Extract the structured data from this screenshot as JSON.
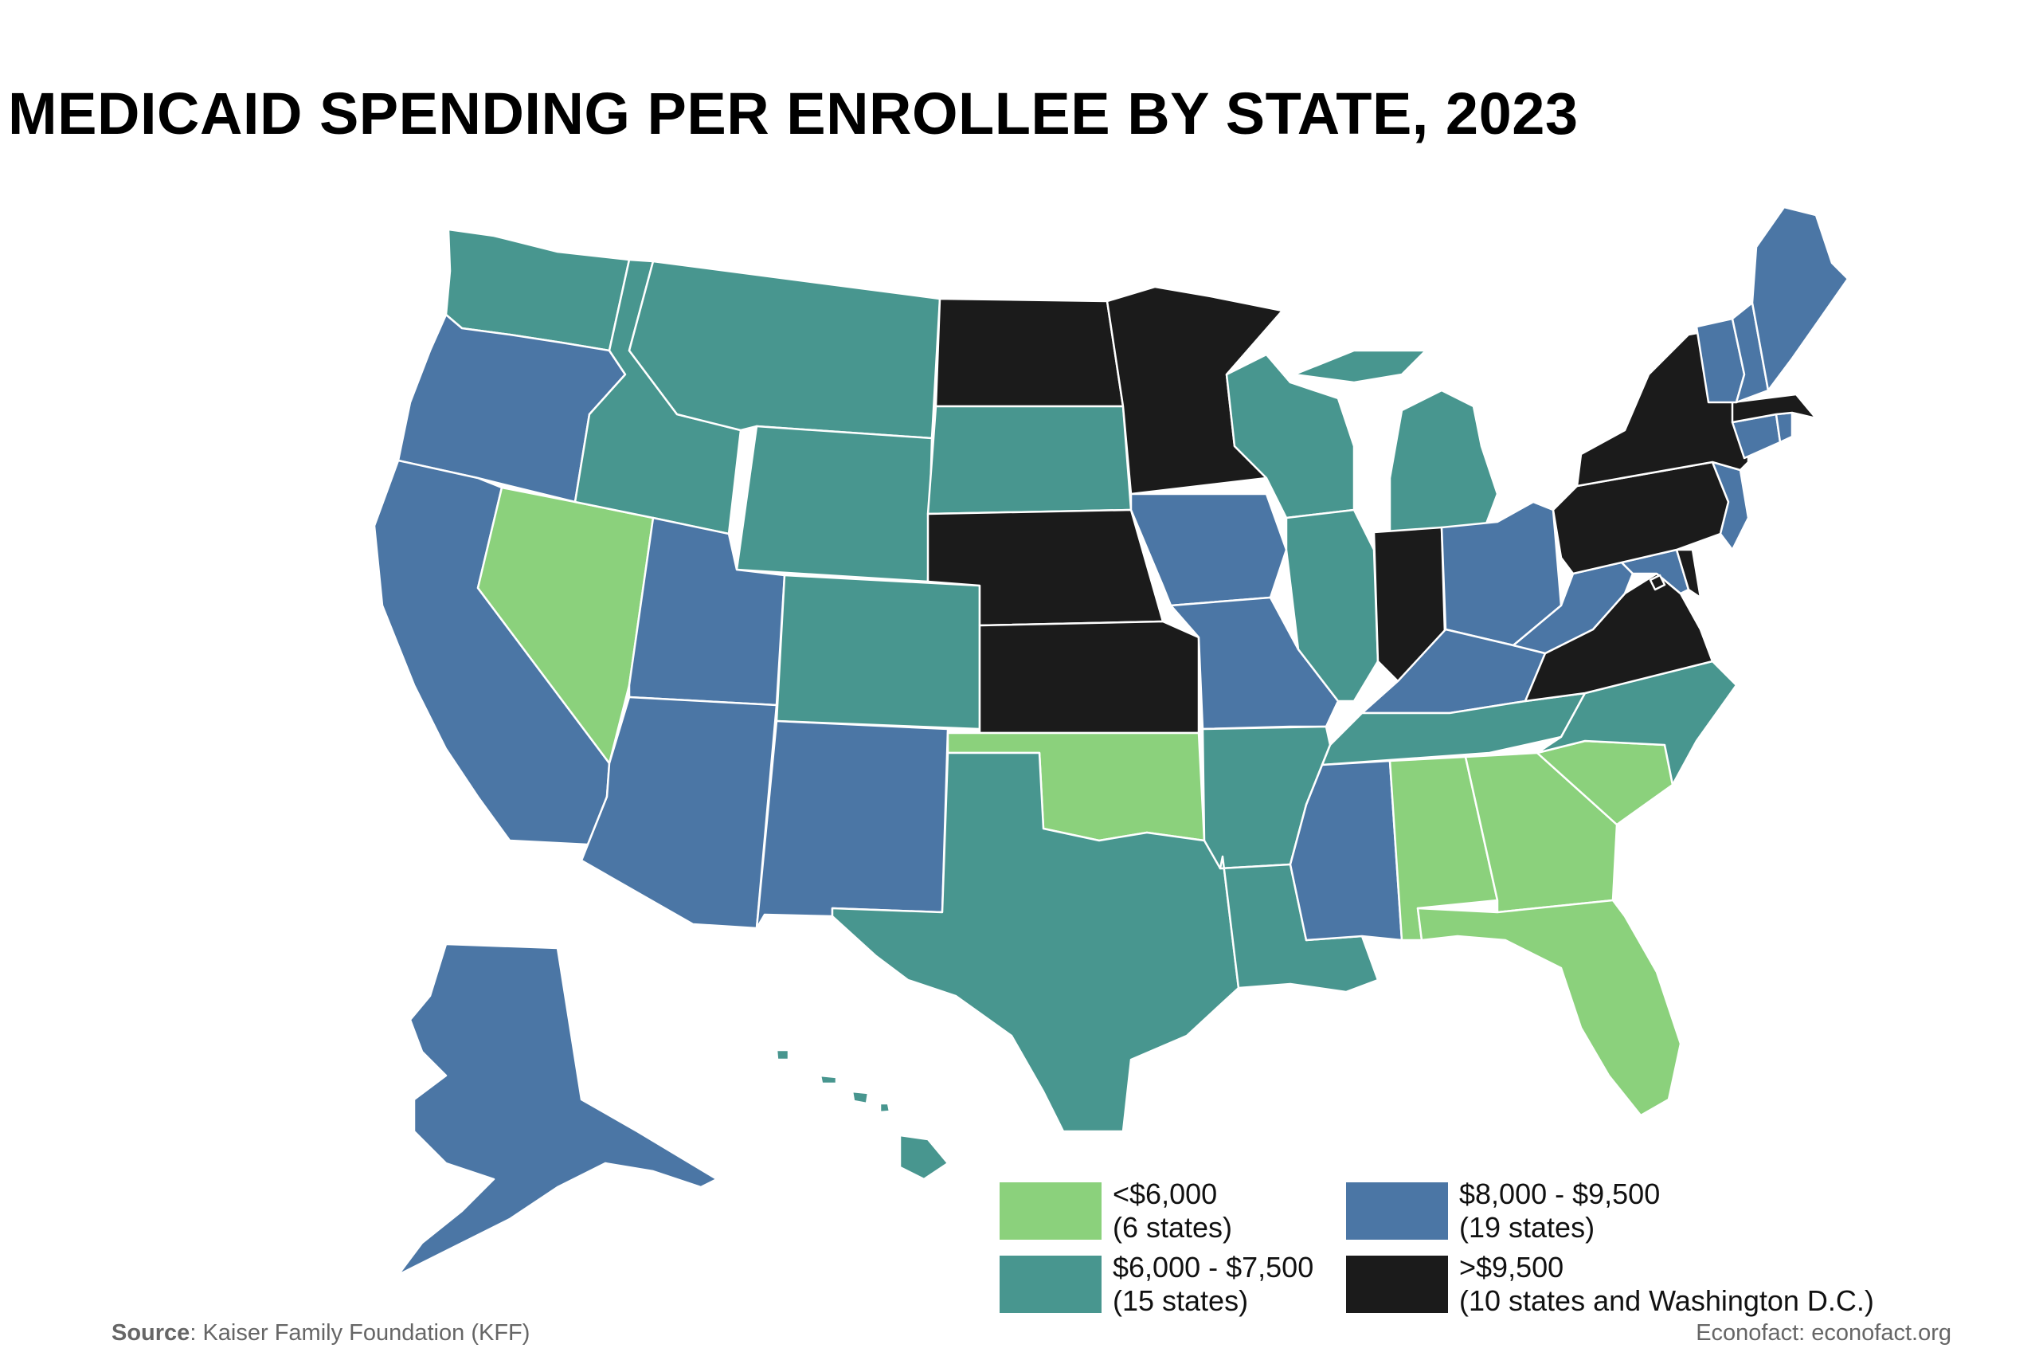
{
  "title": "MEDICAID SPENDING PER ENROLLEE BY STATE, 2023",
  "colors": {
    "low": "#8bd17c",
    "mid": "#48968f",
    "high": "#4b76a5",
    "top": "#1b1b1b"
  },
  "legend": [
    {
      "key": "low",
      "range": "<$6,000",
      "count": "(6 states)"
    },
    {
      "key": "high",
      "range": "$8,000 - $9,500",
      "count": "(19 states)"
    },
    {
      "key": "mid",
      "range": "$6,000 - $7,500",
      "count": "(15 states)"
    },
    {
      "key": "top",
      "range": ">$9,500",
      "count": "(10 states and Washington D.C.)"
    }
  ],
  "states": {
    "WA": "mid",
    "OR": "high",
    "CA": "high",
    "NV": "low",
    "ID": "mid",
    "MT": "mid",
    "WY": "mid",
    "UT": "high",
    "AZ": "high",
    "CO": "mid",
    "NM": "high",
    "ND": "top",
    "SD": "mid",
    "NE": "top",
    "KS": "top",
    "OK": "low",
    "TX": "mid",
    "MN": "top",
    "IA": "high",
    "MO": "high",
    "AR": "mid",
    "LA": "mid",
    "WI": "mid",
    "IL": "mid",
    "MI": "mid",
    "IN": "top",
    "OH": "high",
    "KY": "high",
    "TN": "mid",
    "MS": "high",
    "AL": "low",
    "GA": "low",
    "FL": "low",
    "SC": "low",
    "NC": "mid",
    "VA": "top",
    "WV": "high",
    "MD": "high",
    "DE": "top",
    "DC": "top",
    "PA": "top",
    "NJ": "high",
    "NY": "top",
    "CT": "high",
    "RI": "high",
    "MA": "top",
    "VT": "high",
    "NH": "high",
    "ME": "high",
    "AK": "high",
    "HI": "mid"
  },
  "source_label": "Source",
  "source_text": ": Kaiser Family Foundation (KFF)",
  "credit": "Econofact: econofact.org"
}
